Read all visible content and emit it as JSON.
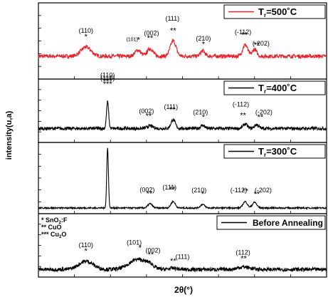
{
  "chart_data": {
    "type": "line",
    "xlabel": "2θ(°)",
    "ylabel": "intensity(u,a)",
    "x_range": [
      20,
      60
    ],
    "grid": false,
    "legend_placement": "top-right",
    "panels": [
      {
        "legend_label": "T",
        "legend_sub": "r",
        "legend_value": "=500˚C",
        "color": "#e8202a",
        "baseline": 0.3,
        "noise": 0.05,
        "peaks": [
          {
            "x": 26.6,
            "h": 0.12,
            "w": 0.7
          },
          {
            "x": 33.8,
            "h": 0.08,
            "w": 0.4
          },
          {
            "x": 35.5,
            "h": 0.1,
            "w": 0.4
          },
          {
            "x": 38.7,
            "h": 0.2,
            "w": 0.4
          },
          {
            "x": 42.8,
            "h": 0.07,
            "w": 0.3
          },
          {
            "x": 48.7,
            "h": 0.15,
            "w": 0.35
          },
          {
            "x": 50.0,
            "h": 0.09,
            "w": 0.3
          }
        ],
        "annotations": [
          {
            "text": "(110)",
            "x": 26.6,
            "row": 0
          },
          {
            "text": "*",
            "x": 26.6,
            "row": 1
          },
          {
            "text": "(101)",
            "x": 33.0,
            "row": 0,
            "small": true
          },
          {
            "text": "*",
            "x": 33.9,
            "row": 1
          },
          {
            "text": "(002)",
            "x": 35.7,
            "row": 0
          },
          {
            "text": "**",
            "x": 35.5,
            "row": 1
          },
          {
            "text": "(111)",
            "x": 38.6,
            "row": -1
          },
          {
            "text": "**",
            "x": 38.7,
            "row": 1
          },
          {
            "text": "(210)",
            "x": 42.9,
            "row": 0.6
          },
          {
            "text": "*",
            "x": 42.9,
            "row": 1.5
          },
          {
            "text": "(-112)",
            "x": 48.4,
            "row": 0
          },
          {
            "text": "**",
            "x": 48.6,
            "row": 1
          },
          {
            "text": "(-202)",
            "x": 50.9,
            "row": 0.6
          },
          {
            "text": "**",
            "x": 50.3,
            "row": 1.5
          }
        ]
      },
      {
        "legend_label": "T",
        "legend_sub": "r",
        "legend_value": "=400˚C",
        "color": "#000000",
        "baseline": 0.22,
        "noise": 0.05,
        "peaks": [
          {
            "x": 29.6,
            "h": 0.42,
            "w": 0.15
          },
          {
            "x": 35.5,
            "h": 0.04,
            "w": 0.4
          },
          {
            "x": 38.7,
            "h": 0.14,
            "w": 0.3
          },
          {
            "x": 42.8,
            "h": 0.05,
            "w": 0.3
          },
          {
            "x": 48.7,
            "h": 0.07,
            "w": 0.3
          },
          {
            "x": 50.3,
            "h": 0.06,
            "w": 0.3
          }
        ],
        "annotations": [
          {
            "text": "(110)",
            "x": 29.6,
            "row": -1.6
          },
          {
            "text": "***",
            "x": 29.6,
            "row": -0.6
          },
          {
            "text": "(002)",
            "x": 35.0,
            "row": 0
          },
          {
            "text": "**",
            "x": 35.3,
            "row": 1
          },
          {
            "text": "(111)",
            "x": 38.4,
            "row": 0
          },
          {
            "text": "**",
            "x": 38.6,
            "row": 1
          },
          {
            "text": "(210)",
            "x": 42.5,
            "row": 0.3
          },
          {
            "text": "*",
            "x": 42.9,
            "row": 1.3
          },
          {
            "text": "(-112)",
            "x": 48.1,
            "row": -1.1
          },
          {
            "text": "**",
            "x": 48.4,
            "row": 1
          },
          {
            "text": "(-202)",
            "x": 51.3,
            "row": 0
          },
          {
            "text": "**",
            "x": 50.8,
            "row": 1
          }
        ]
      },
      {
        "legend_label": "T",
        "legend_sub": "r",
        "legend_value": "=300˚C",
        "color": "#000000",
        "baseline": 0.08,
        "noise": 0.02,
        "peaks": [
          {
            "x": 29.6,
            "h": 0.84,
            "w": 0.12
          },
          {
            "x": 35.5,
            "h": 0.06,
            "w": 0.3
          },
          {
            "x": 38.7,
            "h": 0.09,
            "w": 0.3
          },
          {
            "x": 42.8,
            "h": 0.05,
            "w": 0.3
          },
          {
            "x": 48.7,
            "h": 0.09,
            "w": 0.3
          },
          {
            "x": 50.0,
            "h": 0.08,
            "w": 0.3
          }
        ],
        "annotations": [
          {
            "text": "(110)",
            "x": 29.6,
            "row": -8.4
          },
          {
            "text": "***",
            "x": 29.6,
            "row": -7.4
          },
          {
            "text": "(002)",
            "x": 35.1,
            "row": 0
          },
          {
            "text": "**",
            "x": 35.4,
            "row": 1
          },
          {
            "text": "(111)",
            "x": 38.2,
            "row": -0.4
          },
          {
            "text": "**",
            "x": 38.6,
            "row": 0.6
          },
          {
            "text": "(210)",
            "x": 42.3,
            "row": 0
          },
          {
            "text": "*",
            "x": 42.8,
            "row": 1
          },
          {
            "text": "(-112)",
            "x": 47.8,
            "row": 0
          },
          {
            "text": "**",
            "x": 48.7,
            "row": 1
          },
          {
            "text": "(-202)",
            "x": 51.2,
            "row": 0
          },
          {
            "text": "**",
            "x": 50.3,
            "row": 1
          }
        ]
      },
      {
        "legend_label": "Before Annealing",
        "color": "#000000",
        "baseline": 0.12,
        "noise": 0.06,
        "peaks": [
          {
            "x": 26.6,
            "h": 0.13,
            "w": 1.0
          },
          {
            "x": 33.8,
            "h": 0.16,
            "w": 1.2
          },
          {
            "x": 35.5,
            "h": 0.05,
            "w": 0.5
          },
          {
            "x": 38.7,
            "h": 0.02,
            "w": 0.5
          },
          {
            "x": 48.5,
            "h": 0.04,
            "w": 0.8
          }
        ],
        "annotations": [
          {
            "text": "(110)",
            "x": 26.6,
            "row": 0
          },
          {
            "text": "*",
            "x": 26.6,
            "row": 1
          },
          {
            "text": "(101)",
            "x": 33.3,
            "row": -0.2
          },
          {
            "text": "*",
            "x": 34.1,
            "row": 0.8
          },
          {
            "text": "(002)",
            "x": 35.9,
            "row": 0.3
          },
          {
            "text": "**",
            "x": 35.6,
            "row": 1.3
          },
          {
            "text": "(111)",
            "x": 40.0,
            "row": 0.6
          },
          {
            "text": "**",
            "x": 38.7,
            "row": 1.5
          },
          {
            "text": "(112)",
            "x": 48.4,
            "row": 0.3
          },
          {
            "text": "**",
            "x": 48.5,
            "row": 1.3
          }
        ],
        "phase_legend": [
          {
            "prefix": "*",
            "main": "SnO",
            "sub": "2",
            "tail": ":F"
          },
          {
            "prefix": "**",
            "main": "CuO",
            "sub": "",
            "tail": ""
          },
          {
            "prefix": "***",
            "main": "Cu",
            "sub": "2",
            "tail": "O"
          }
        ]
      }
    ]
  }
}
